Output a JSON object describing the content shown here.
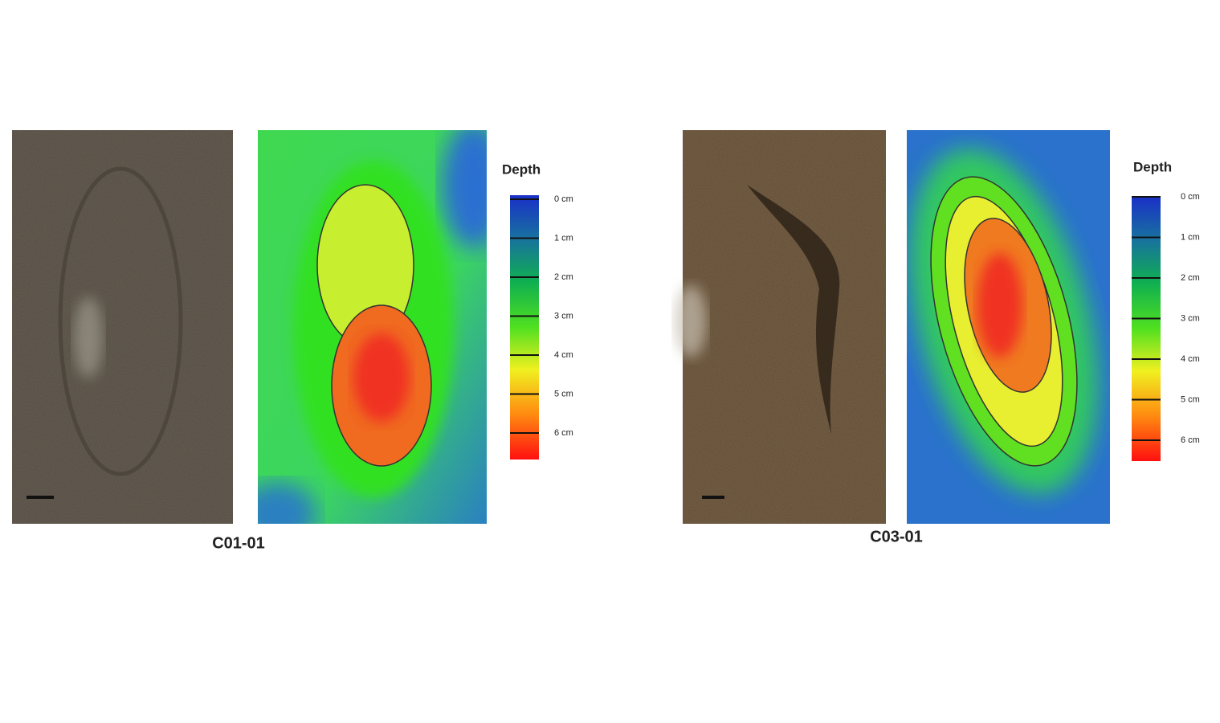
{
  "panels": [
    {
      "caption": "C01-01",
      "legend_title": "Depth",
      "legend_ticks": [
        "0 cm",
        "1 cm",
        "2 cm",
        "3 cm",
        "4 cm",
        "5 cm",
        "6 cm"
      ]
    },
    {
      "caption": "C03-01",
      "legend_title": "Depth",
      "legend_ticks": [
        "0 cm",
        "1 cm",
        "2 cm",
        "3 cm",
        "4 cm",
        "5 cm",
        "6 cm"
      ]
    }
  ]
}
